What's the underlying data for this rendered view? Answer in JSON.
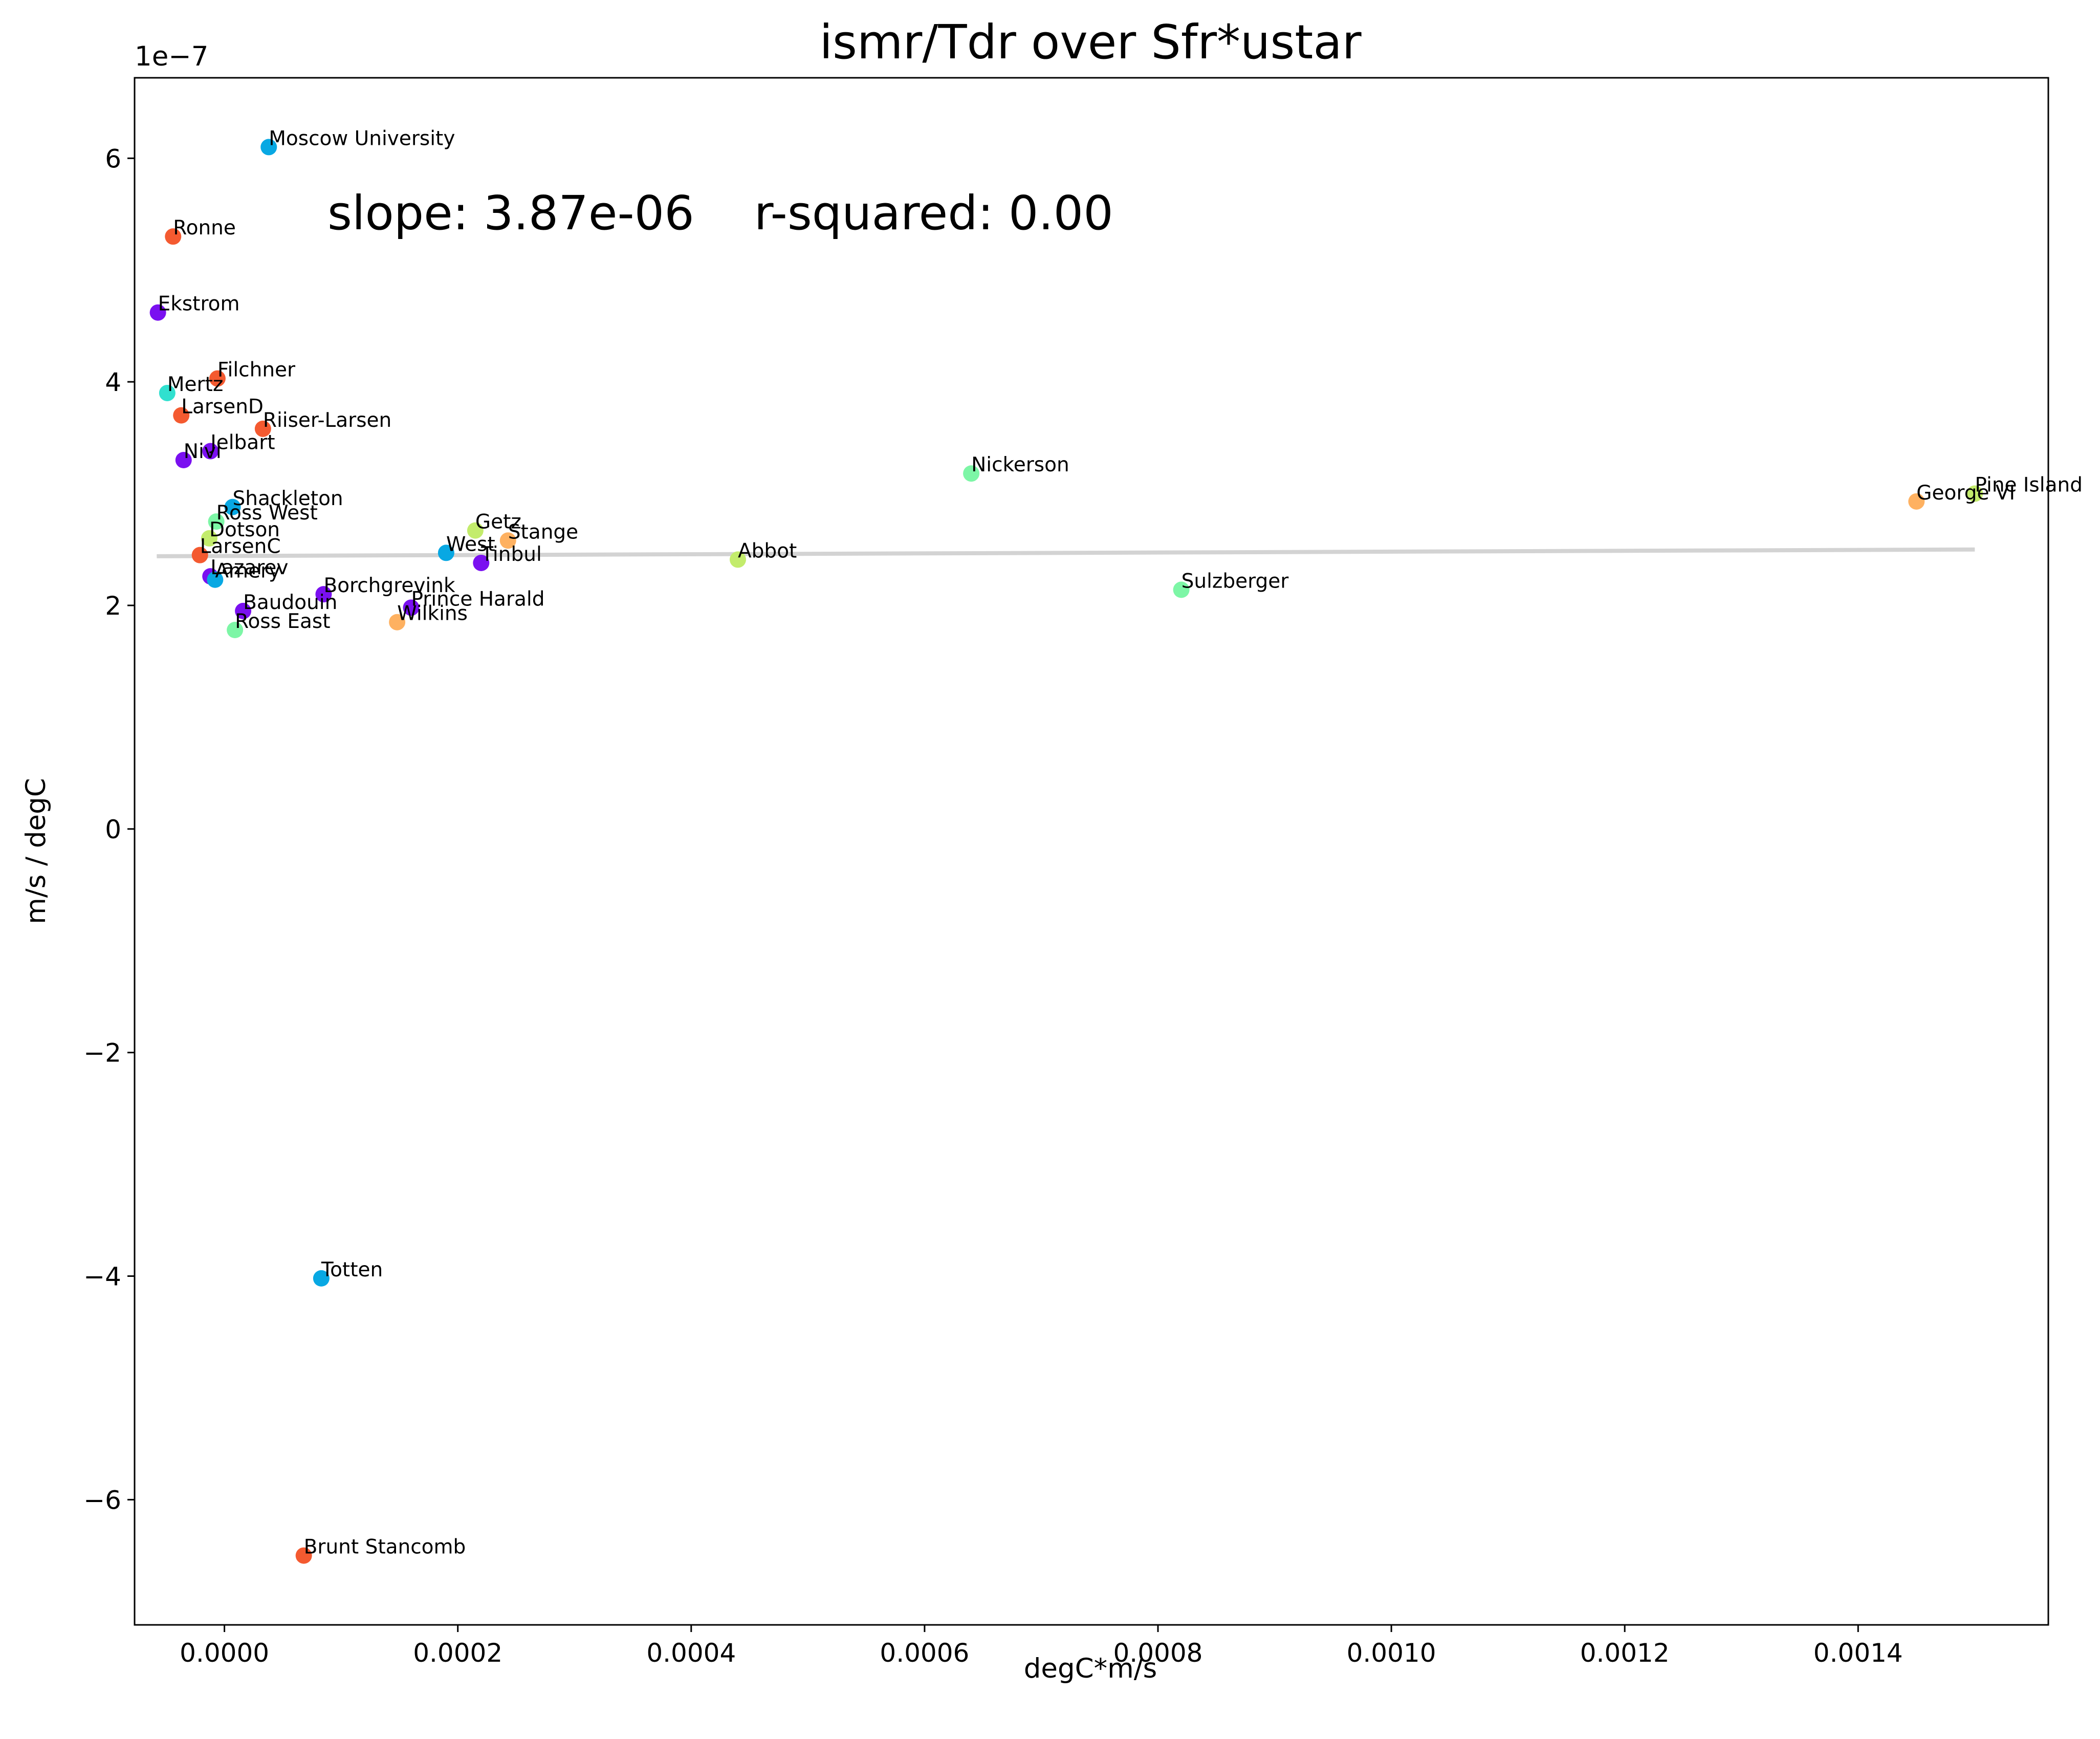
{
  "chart_data": {
    "type": "scatter",
    "title": "ismr/Tdr over Sfr*ustar",
    "xlabel": "degC*m/s",
    "ylabel": "m/s / degC",
    "y_offset_label": "1e−7",
    "annotation": "slope: 3.87e-06    r-squared: 0.00",
    "xlim": [
      -7.7e-05,
      0.001563
    ],
    "ylim": [
      -7.12,
      6.72
    ],
    "x_ticks": [
      {
        "value": 0.0,
        "label": "0.0000"
      },
      {
        "value": 0.0002,
        "label": "0.0002"
      },
      {
        "value": 0.0004,
        "label": "0.0004"
      },
      {
        "value": 0.0006,
        "label": "0.0006"
      },
      {
        "value": 0.0008,
        "label": "0.0008"
      },
      {
        "value": 0.001,
        "label": "0.0010"
      },
      {
        "value": 0.0012,
        "label": "0.0012"
      },
      {
        "value": 0.0014,
        "label": "0.0014"
      }
    ],
    "y_ticks": [
      {
        "value": 6,
        "label": "6"
      },
      {
        "value": 4,
        "label": "4"
      },
      {
        "value": 2,
        "label": "2"
      },
      {
        "value": 0,
        "label": "0"
      },
      {
        "value": -2,
        "label": "−2"
      },
      {
        "value": -4,
        "label": "−4"
      },
      {
        "value": -6,
        "label": "−6"
      }
    ],
    "grid": false,
    "fit_line": {
      "x": [
        -5.8e-05,
        0.0015
      ],
      "y": [
        2.44,
        2.5
      ],
      "color": "#d3d3d3"
    },
    "points": [
      {
        "label": "Moscow University",
        "x": 3.8e-05,
        "y": 6.1,
        "color": "#08a8e3"
      },
      {
        "label": "Ronne",
        "x": -4.4e-05,
        "y": 5.3,
        "color": "#f45a30"
      },
      {
        "label": "Ekstrom",
        "x": -5.7e-05,
        "y": 4.62,
        "color": "#7a10f0"
      },
      {
        "label": "Filchner",
        "x": -6e-06,
        "y": 4.03,
        "color": "#f45a30"
      },
      {
        "label": "Mertz",
        "x": -4.9e-05,
        "y": 3.9,
        "color": "#30e0cf"
      },
      {
        "label": "LarsenD",
        "x": -3.7e-05,
        "y": 3.7,
        "color": "#f45a30"
      },
      {
        "label": "Riiser-Larsen",
        "x": 3.3e-05,
        "y": 3.58,
        "color": "#f45a30"
      },
      {
        "label": "Jelbart",
        "x": -1.2e-05,
        "y": 3.38,
        "color": "#7a10f0"
      },
      {
        "label": "Nivl",
        "x": -3.5e-05,
        "y": 3.3,
        "color": "#7a10f0"
      },
      {
        "label": "Nickerson",
        "x": 0.00064,
        "y": 3.18,
        "color": "#7df6a6"
      },
      {
        "label": "Pine Island",
        "x": 0.0015,
        "y": 3.0,
        "color": "#c3ec6c"
      },
      {
        "label": "George VI",
        "x": 0.00145,
        "y": 2.93,
        "color": "#feb161"
      },
      {
        "label": "Shackleton",
        "x": 7e-06,
        "y": 2.88,
        "color": "#08a8e3"
      },
      {
        "label": "Ross West",
        "x": -7e-06,
        "y": 2.75,
        "color": "#7df6a6"
      },
      {
        "label": "Dotson",
        "x": -1.3e-05,
        "y": 2.6,
        "color": "#c3ec6c"
      },
      {
        "label": "Getz",
        "x": 0.000215,
        "y": 2.67,
        "color": "#c3ec6c"
      },
      {
        "label": "Stange",
        "x": 0.000243,
        "y": 2.58,
        "color": "#feb161"
      },
      {
        "label": "West",
        "x": 0.00019,
        "y": 2.47,
        "color": "#08a8e3"
      },
      {
        "label": "Tinbul",
        "x": 0.00022,
        "y": 2.38,
        "color": "#7a10f0"
      },
      {
        "label": "Abbot",
        "x": 0.00044,
        "y": 2.41,
        "color": "#c3ec6c"
      },
      {
        "label": "LarsenC",
        "x": -2.1e-05,
        "y": 2.45,
        "color": "#f45a30"
      },
      {
        "label": "Lazarev",
        "x": -1.2e-05,
        "y": 2.26,
        "color": "#7a10f0"
      },
      {
        "label": "Amery",
        "x": -8e-06,
        "y": 2.23,
        "color": "#08a8e3"
      },
      {
        "label": "Sulzberger",
        "x": 0.00082,
        "y": 2.14,
        "color": "#7df6a6"
      },
      {
        "label": "Borchgrevink",
        "x": 8.5e-05,
        "y": 2.1,
        "color": "#7a10f0"
      },
      {
        "label": "Prince Harald",
        "x": 0.00016,
        "y": 1.98,
        "color": "#7a10f0"
      },
      {
        "label": "Baudouin",
        "x": 1.6e-05,
        "y": 1.95,
        "color": "#7a10f0"
      },
      {
        "label": "Wilkins",
        "x": 0.000148,
        "y": 1.85,
        "color": "#feb161"
      },
      {
        "label": "Ross East",
        "x": 9e-06,
        "y": 1.78,
        "color": "#7df6a6"
      },
      {
        "label": "Totten",
        "x": 8.3e-05,
        "y": -4.02,
        "color": "#08a8e3"
      },
      {
        "label": "Brunt Stancomb",
        "x": 6.8e-05,
        "y": -6.5,
        "color": "#f45a30"
      }
    ]
  }
}
